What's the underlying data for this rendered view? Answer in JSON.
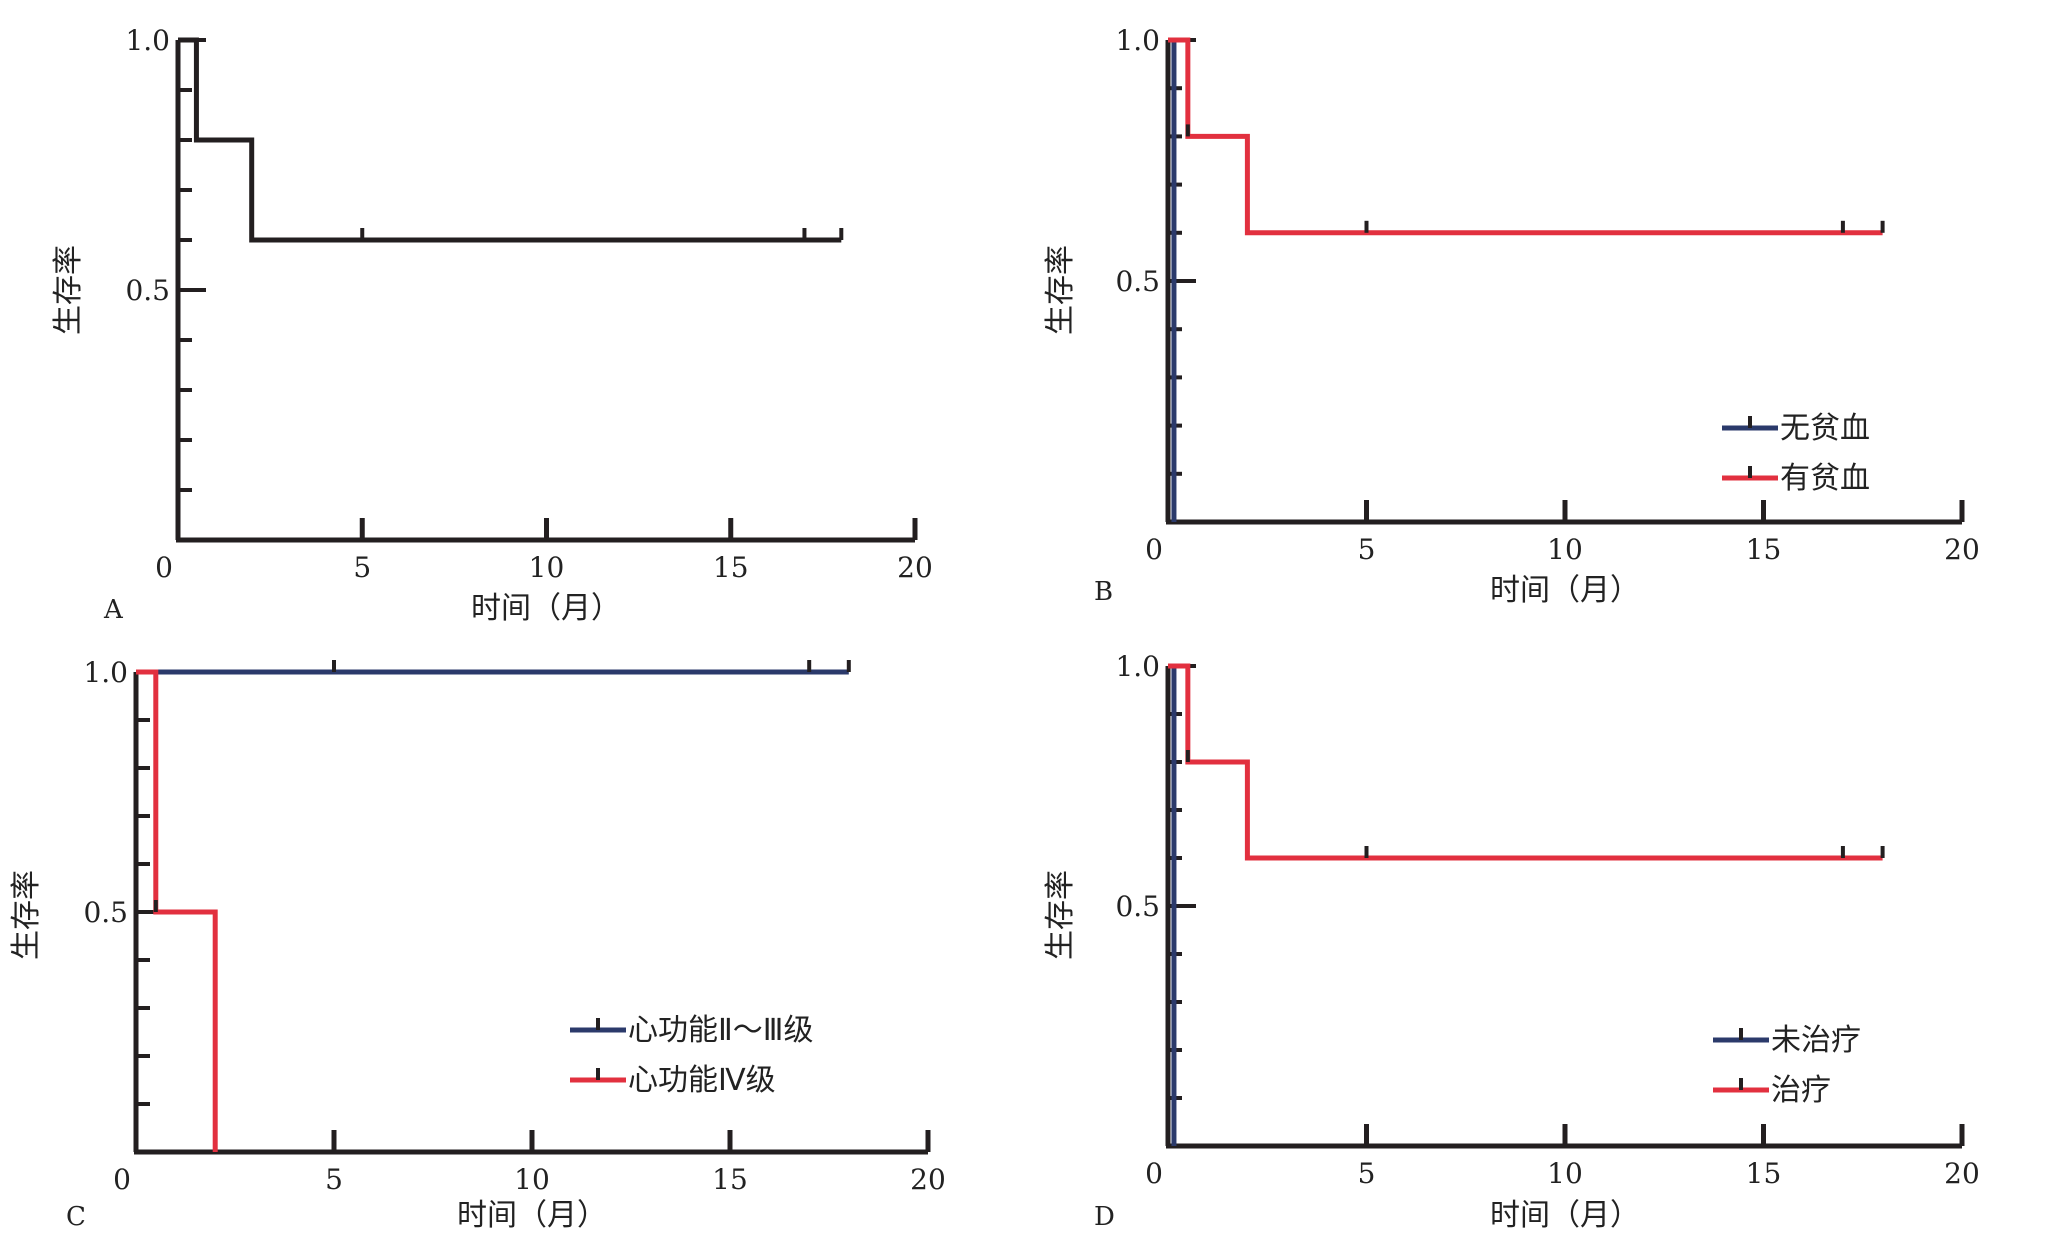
{
  "chart_data": [
    {
      "type": "line",
      "panel": "A",
      "xlabel": "时间（月）",
      "ylabel": "生存率",
      "xlim": [
        0,
        20
      ],
      "ylim": [
        0,
        1.0
      ],
      "xticks": [
        "0",
        "5",
        "10",
        "15",
        "20"
      ],
      "yticks": [
        {
          "value": 0.5,
          "label": "0.5"
        },
        {
          "value": 1.0,
          "label": "1.0"
        }
      ],
      "y_minor_step": 0.1,
      "grid": false,
      "legend": null,
      "series": [
        {
          "color": "#231f20",
          "steps": [
            [
              0,
              1.0
            ],
            [
              0.5,
              0.8
            ],
            [
              2,
              0.6
            ],
            [
              18,
              0.6
            ]
          ],
          "censors": [
            [
              0.5,
              0.8
            ],
            [
              5,
              0.6
            ],
            [
              17,
              0.6
            ],
            [
              18,
              0.6
            ]
          ]
        }
      ]
    },
    {
      "type": "line",
      "panel": "B",
      "xlabel": "时间（月）",
      "ylabel": "生存率",
      "xlim": [
        0,
        20
      ],
      "ylim": [
        0,
        1.0
      ],
      "xticks": [
        "0",
        "5",
        "10",
        "15",
        "20"
      ],
      "yticks": [
        {
          "value": 0.5,
          "label": "0.5"
        },
        {
          "value": 1.0,
          "label": "1.0"
        }
      ],
      "y_minor_step": 0.1,
      "grid": false,
      "legend": "bottom-right",
      "series": [
        {
          "name": "无贫血",
          "color": "#2b3a6b",
          "steps": [
            [
              0,
              1.0
            ],
            [
              0.15,
              0.0
            ]
          ],
          "censors": []
        },
        {
          "name": "有贫血",
          "color": "#e2303f",
          "steps": [
            [
              0,
              1.0
            ],
            [
              0.5,
              0.8
            ],
            [
              2,
              0.6
            ],
            [
              18,
              0.6
            ]
          ],
          "censors": [
            [
              0.5,
              0.8
            ],
            [
              5,
              0.6
            ],
            [
              17,
              0.6
            ],
            [
              18,
              0.6
            ]
          ]
        }
      ]
    },
    {
      "type": "line",
      "panel": "C",
      "xlabel": "时间（月）",
      "ylabel": "生存率",
      "xlim": [
        0,
        20
      ],
      "ylim": [
        0,
        1.0
      ],
      "xticks": [
        "0",
        "5",
        "10",
        "15",
        "20"
      ],
      "yticks": [
        {
          "value": 0.5,
          "label": "0.5"
        },
        {
          "value": 1.0,
          "label": "1.0"
        }
      ],
      "y_minor_step": 0.1,
      "grid": false,
      "legend": "bottom-right",
      "series": [
        {
          "name": "心功能Ⅱ～Ⅲ级",
          "color": "#2b3a6b",
          "steps": [
            [
              0,
              1.0
            ],
            [
              18,
              1.0
            ]
          ],
          "censors": [
            [
              5,
              1.0
            ],
            [
              17,
              1.0
            ],
            [
              18,
              1.0
            ]
          ]
        },
        {
          "name": "心功能Ⅳ级",
          "color": "#e2303f",
          "steps": [
            [
              0,
              1.0
            ],
            [
              0.5,
              0.5
            ],
            [
              2,
              0.0
            ]
          ],
          "censors": [
            [
              0.5,
              0.5
            ]
          ]
        }
      ]
    },
    {
      "type": "line",
      "panel": "D",
      "xlabel": "时间（月）",
      "ylabel": "生存率",
      "xlim": [
        0,
        20
      ],
      "ylim": [
        0,
        1.0
      ],
      "xticks": [
        "0",
        "5",
        "10",
        "15",
        "20"
      ],
      "yticks": [
        {
          "value": 0.5,
          "label": "0.5"
        },
        {
          "value": 1.0,
          "label": "1.0"
        }
      ],
      "y_minor_step": 0.1,
      "grid": false,
      "legend": "bottom-right",
      "series": [
        {
          "name": "未治疗",
          "color": "#2b3a6b",
          "steps": [
            [
              0,
              1.0
            ],
            [
              0.15,
              0.0
            ]
          ],
          "censors": []
        },
        {
          "name": "治疗",
          "color": "#e2303f",
          "steps": [
            [
              0,
              1.0
            ],
            [
              0.5,
              0.8
            ],
            [
              2,
              0.6
            ],
            [
              18,
              0.6
            ]
          ],
          "censors": [
            [
              0.5,
              0.8
            ],
            [
              5,
              0.6
            ],
            [
              17,
              0.6
            ],
            [
              18,
              0.6
            ]
          ]
        }
      ]
    }
  ]
}
